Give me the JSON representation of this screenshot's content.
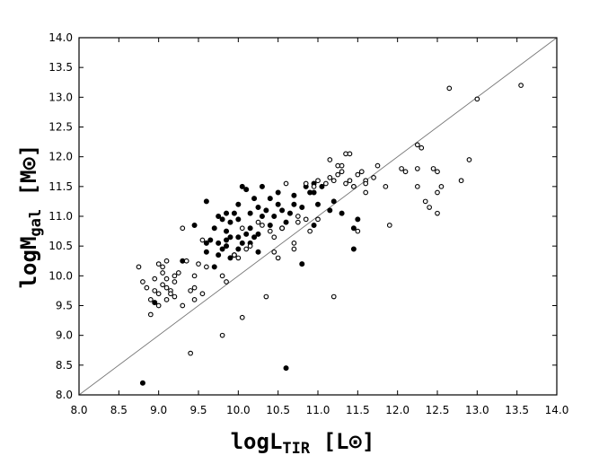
{
  "chart_data": {
    "type": "scatter",
    "xlabel": {
      "main": "logL",
      "sub": "TIR",
      "unit_open": " [L",
      "unit_symbol": "⊙",
      "unit_close": "]"
    },
    "ylabel": {
      "main": "logM",
      "sub": "gal",
      "unit_open": " [M",
      "unit_symbol": "⊙",
      "unit_close": "]"
    },
    "xlim": [
      8.0,
      14.0
    ],
    "ylim": [
      8.0,
      14.0
    ],
    "x_ticks": [
      "8.0",
      "8.5",
      "9.0",
      "9.5",
      "10.0",
      "10.5",
      "11.0",
      "11.5",
      "12.0",
      "12.5",
      "13.0",
      "13.5",
      "14.0"
    ],
    "y_ticks": [
      "8.0",
      "8.5",
      "9.0",
      "9.5",
      "10.0",
      "10.5",
      "11.0",
      "11.5",
      "12.0",
      "12.5",
      "13.0",
      "13.5",
      "14.0"
    ],
    "grid": false,
    "reference_line": {
      "from": [
        8.0,
        8.0
      ],
      "to": [
        14.0,
        14.0
      ]
    },
    "series": [
      {
        "marker": "filled-circle",
        "points": [
          [
            8.8,
            8.2
          ],
          [
            10.6,
            8.45
          ],
          [
            10.8,
            10.2
          ],
          [
            11.45,
            10.45
          ],
          [
            11.45,
            10.8
          ],
          [
            11.5,
            10.95
          ],
          [
            11.3,
            11.05
          ],
          [
            11.15,
            11.1
          ],
          [
            11.0,
            11.2
          ],
          [
            10.9,
            11.4
          ],
          [
            10.85,
            11.5
          ],
          [
            10.95,
            11.55
          ],
          [
            10.8,
            11.15
          ],
          [
            10.7,
            11.2
          ],
          [
            10.65,
            11.05
          ],
          [
            10.6,
            10.9
          ],
          [
            10.55,
            11.1
          ],
          [
            10.5,
            11.2
          ],
          [
            10.45,
            11.0
          ],
          [
            10.4,
            11.3
          ],
          [
            10.35,
            11.1
          ],
          [
            10.3,
            11.0
          ],
          [
            10.25,
            11.15
          ],
          [
            10.2,
            11.3
          ],
          [
            10.15,
            11.05
          ],
          [
            10.1,
            11.45
          ],
          [
            10.05,
            11.5
          ],
          [
            10.0,
            11.2
          ],
          [
            9.95,
            11.05
          ],
          [
            9.9,
            10.9
          ],
          [
            9.85,
            10.75
          ],
          [
            9.8,
            10.95
          ],
          [
            9.75,
            11.0
          ],
          [
            9.7,
            10.8
          ],
          [
            9.65,
            10.6
          ],
          [
            9.6,
            10.55
          ],
          [
            9.6,
            11.25
          ],
          [
            9.45,
            10.85
          ],
          [
            9.9,
            10.65
          ],
          [
            9.85,
            10.5
          ],
          [
            9.95,
            10.35
          ],
          [
            10.0,
            10.45
          ],
          [
            10.05,
            10.55
          ],
          [
            10.1,
            10.7
          ],
          [
            10.15,
            10.8
          ],
          [
            10.2,
            10.65
          ],
          [
            10.25,
            10.7
          ],
          [
            9.75,
            10.35
          ],
          [
            9.8,
            10.45
          ],
          [
            9.85,
            10.6
          ],
          [
            9.9,
            10.3
          ],
          [
            9.7,
            10.15
          ],
          [
            9.6,
            10.4
          ],
          [
            10.55,
            10.8
          ],
          [
            10.4,
            10.85
          ],
          [
            10.7,
            11.35
          ],
          [
            10.3,
            11.5
          ],
          [
            10.95,
            11.4
          ],
          [
            11.2,
            11.25
          ],
          [
            11.05,
            11.5
          ],
          [
            10.95,
            10.85
          ],
          [
            9.75,
            10.55
          ],
          [
            10.0,
            10.65
          ],
          [
            10.15,
            10.55
          ],
          [
            10.25,
            10.4
          ],
          [
            9.3,
            10.25
          ],
          [
            8.95,
            9.55
          ],
          [
            10.5,
            11.4
          ],
          [
            10.0,
            10.95
          ],
          [
            9.85,
            11.05
          ]
        ]
      },
      {
        "marker": "open-circle",
        "points": [
          [
            13.55,
            13.2
          ],
          [
            13.0,
            12.97
          ],
          [
            12.65,
            13.15
          ],
          [
            12.3,
            12.15
          ],
          [
            12.25,
            12.2
          ],
          [
            12.1,
            11.75
          ],
          [
            12.05,
            11.8
          ],
          [
            12.25,
            11.8
          ],
          [
            12.9,
            11.95
          ],
          [
            12.5,
            11.75
          ],
          [
            12.45,
            11.8
          ],
          [
            12.8,
            11.6
          ],
          [
            12.55,
            11.5
          ],
          [
            12.5,
            11.4
          ],
          [
            12.25,
            11.5
          ],
          [
            12.35,
            11.25
          ],
          [
            12.4,
            11.15
          ],
          [
            12.5,
            11.05
          ],
          [
            11.9,
            10.85
          ],
          [
            11.85,
            11.5
          ],
          [
            11.75,
            11.85
          ],
          [
            11.7,
            11.65
          ],
          [
            11.6,
            11.6
          ],
          [
            11.6,
            11.4
          ],
          [
            11.45,
            11.5
          ],
          [
            11.5,
            11.7
          ],
          [
            11.4,
            11.6
          ],
          [
            11.35,
            11.55
          ],
          [
            11.3,
            11.85
          ],
          [
            11.35,
            12.05
          ],
          [
            11.4,
            12.05
          ],
          [
            11.25,
            11.7
          ],
          [
            11.2,
            11.6
          ],
          [
            11.15,
            11.65
          ],
          [
            11.1,
            11.55
          ],
          [
            11.15,
            11.95
          ],
          [
            11.3,
            11.75
          ],
          [
            11.0,
            11.6
          ],
          [
            10.95,
            11.5
          ],
          [
            10.85,
            11.55
          ],
          [
            10.85,
            10.95
          ],
          [
            10.9,
            10.75
          ],
          [
            10.75,
            10.9
          ],
          [
            10.7,
            10.55
          ],
          [
            10.7,
            10.45
          ],
          [
            10.6,
            11.55
          ],
          [
            10.55,
            10.8
          ],
          [
            10.45,
            10.4
          ],
          [
            10.5,
            10.3
          ],
          [
            10.45,
            10.65
          ],
          [
            10.4,
            10.75
          ],
          [
            10.35,
            9.65
          ],
          [
            10.3,
            10.85
          ],
          [
            10.25,
            10.9
          ],
          [
            10.15,
            10.5
          ],
          [
            10.1,
            10.45
          ],
          [
            10.05,
            10.8
          ],
          [
            10.0,
            10.3
          ],
          [
            9.95,
            10.35
          ],
          [
            9.85,
            9.9
          ],
          [
            9.8,
            10.0
          ],
          [
            9.8,
            9.0
          ],
          [
            10.05,
            9.3
          ],
          [
            9.55,
            9.7
          ],
          [
            9.55,
            10.6
          ],
          [
            9.6,
            10.15
          ],
          [
            9.45,
            10.0
          ],
          [
            9.45,
            9.8
          ],
          [
            9.4,
            9.75
          ],
          [
            9.4,
            8.7
          ],
          [
            9.3,
            9.5
          ],
          [
            9.3,
            10.8
          ],
          [
            9.25,
            10.05
          ],
          [
            9.2,
            9.65
          ],
          [
            9.2,
            9.9
          ],
          [
            9.15,
            9.75
          ],
          [
            9.1,
            9.8
          ],
          [
            9.1,
            9.95
          ],
          [
            9.05,
            10.15
          ],
          [
            9.05,
            9.85
          ],
          [
            9.0,
            9.7
          ],
          [
            9.0,
            9.5
          ],
          [
            8.95,
            9.95
          ],
          [
            8.9,
            9.6
          ],
          [
            8.9,
            9.35
          ],
          [
            8.85,
            9.8
          ],
          [
            8.8,
            9.9
          ],
          [
            8.75,
            10.15
          ],
          [
            9.1,
            10.25
          ],
          [
            9.2,
            10.0
          ],
          [
            9.0,
            10.2
          ],
          [
            9.5,
            10.2
          ],
          [
            11.2,
            9.65
          ],
          [
            11.5,
            10.75
          ],
          [
            11.45,
            11.5
          ],
          [
            11.0,
            10.95
          ],
          [
            10.75,
            11.0
          ],
          [
            11.25,
            11.85
          ],
          [
            11.6,
            11.55
          ],
          [
            11.55,
            11.75
          ],
          [
            9.1,
            9.6
          ],
          [
            9.05,
            10.05
          ],
          [
            8.95,
            9.75
          ],
          [
            9.35,
            10.25
          ],
          [
            9.15,
            9.7
          ],
          [
            9.45,
            9.6
          ]
        ]
      }
    ]
  }
}
